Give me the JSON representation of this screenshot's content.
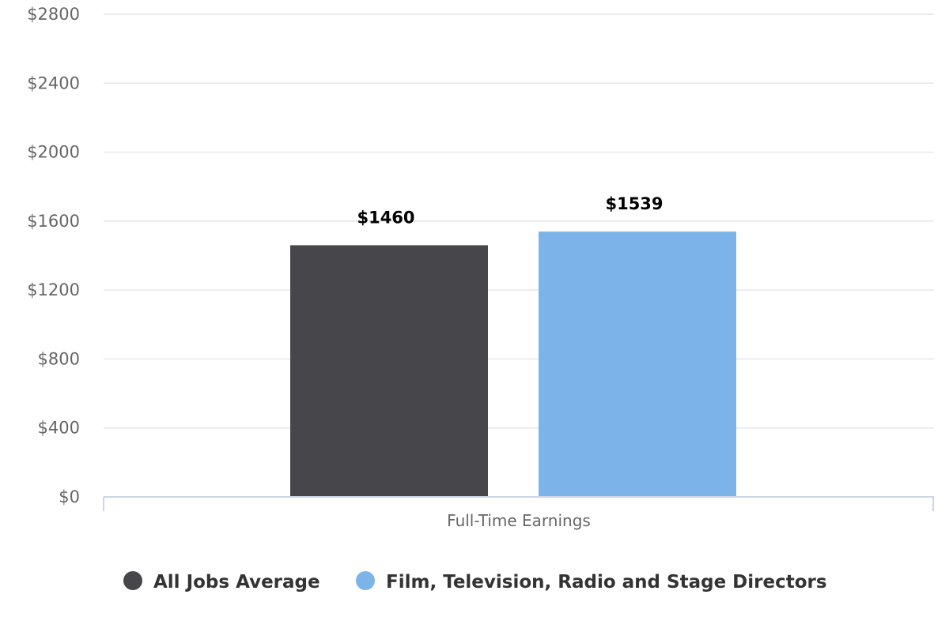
{
  "chart_data": {
    "type": "bar",
    "categories": [
      "Full-Time Earnings"
    ],
    "series": [
      {
        "name": "All Jobs Average",
        "values": [
          1460
        ],
        "color": "#46464b",
        "data_label": "$1460"
      },
      {
        "name": "Film, Television, Radio and Stage Directors",
        "values": [
          1539
        ],
        "color": "#7cb4ea",
        "data_label": "$1539"
      }
    ],
    "ylim": [
      0,
      2800
    ],
    "yticks": [
      0,
      400,
      800,
      1200,
      1600,
      2000,
      2400,
      2800
    ],
    "ytick_labels": [
      "$0",
      "$400",
      "$800",
      "$1200",
      "$1600",
      "$2000",
      "$2400",
      "$2800"
    ],
    "grid": true,
    "legend_position": "bottom"
  }
}
